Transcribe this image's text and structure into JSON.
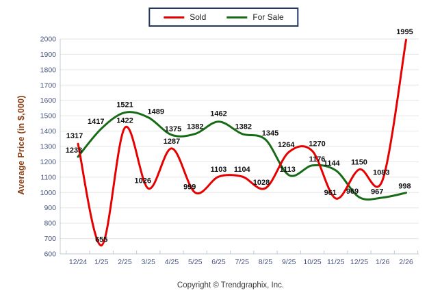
{
  "legend": {
    "items": [
      {
        "label": "Sold",
        "color": "#e60000"
      },
      {
        "label": "For Sale",
        "color": "#176b17"
      }
    ]
  },
  "footer": "Copyright © Trendgraphix, Inc.",
  "chart_data": {
    "type": "line",
    "title": "",
    "xlabel": "",
    "ylabel": "Average Price (in $,000)",
    "ylim": [
      600,
      2000
    ],
    "ytick_step": 100,
    "grid": true,
    "legend_position": "top-center",
    "categories": [
      "12/24",
      "1/25",
      "2/25",
      "3/25",
      "4/25",
      "5/25",
      "6/25",
      "7/25",
      "8/25",
      "9/25",
      "10/25",
      "11/25",
      "12/25",
      "1/26",
      "2/26"
    ],
    "series": [
      {
        "name": "Sold",
        "color": "#e60000",
        "values": [
          1317,
          655,
          1422,
          1026,
          1287,
          999,
          1103,
          1104,
          1028,
          1264,
          1270,
          961,
          1150,
          1083,
          1995
        ],
        "label_dx": [
          -5,
          0,
          0,
          -8,
          0,
          -8,
          0,
          0,
          -6,
          -4,
          7,
          -8,
          0,
          -2,
          -2
        ],
        "label_dy": [
          -8,
          -5,
          -7,
          -8,
          -7,
          -5,
          -7,
          -7,
          -5,
          -7,
          -7,
          -5,
          -7,
          -7,
          -8
        ]
      },
      {
        "name": "For Sale",
        "color": "#176b17",
        "values": [
          1233,
          1417,
          1521,
          1489,
          1375,
          1382,
          1462,
          1382,
          1345,
          1113,
          1176,
          1144,
          969,
          967,
          998
        ],
        "label_dx": [
          -6,
          -8,
          0,
          11,
          2,
          0,
          0,
          2,
          7,
          -2,
          7,
          -6,
          -10,
          -8,
          -2
        ],
        "label_dy": [
          -6,
          -7,
          -8,
          -5,
          -5,
          -7,
          -8,
          -7,
          -6,
          -5,
          -6,
          -7,
          -5,
          -5,
          -6
        ]
      }
    ],
    "style_colors": {
      "grid": "#e6e6e6",
      "axis_line": "#c2cbd6",
      "tick_mark": "#c2cbd6",
      "tick_label": "#44517c",
      "data_label": "#0d0d0d"
    }
  }
}
